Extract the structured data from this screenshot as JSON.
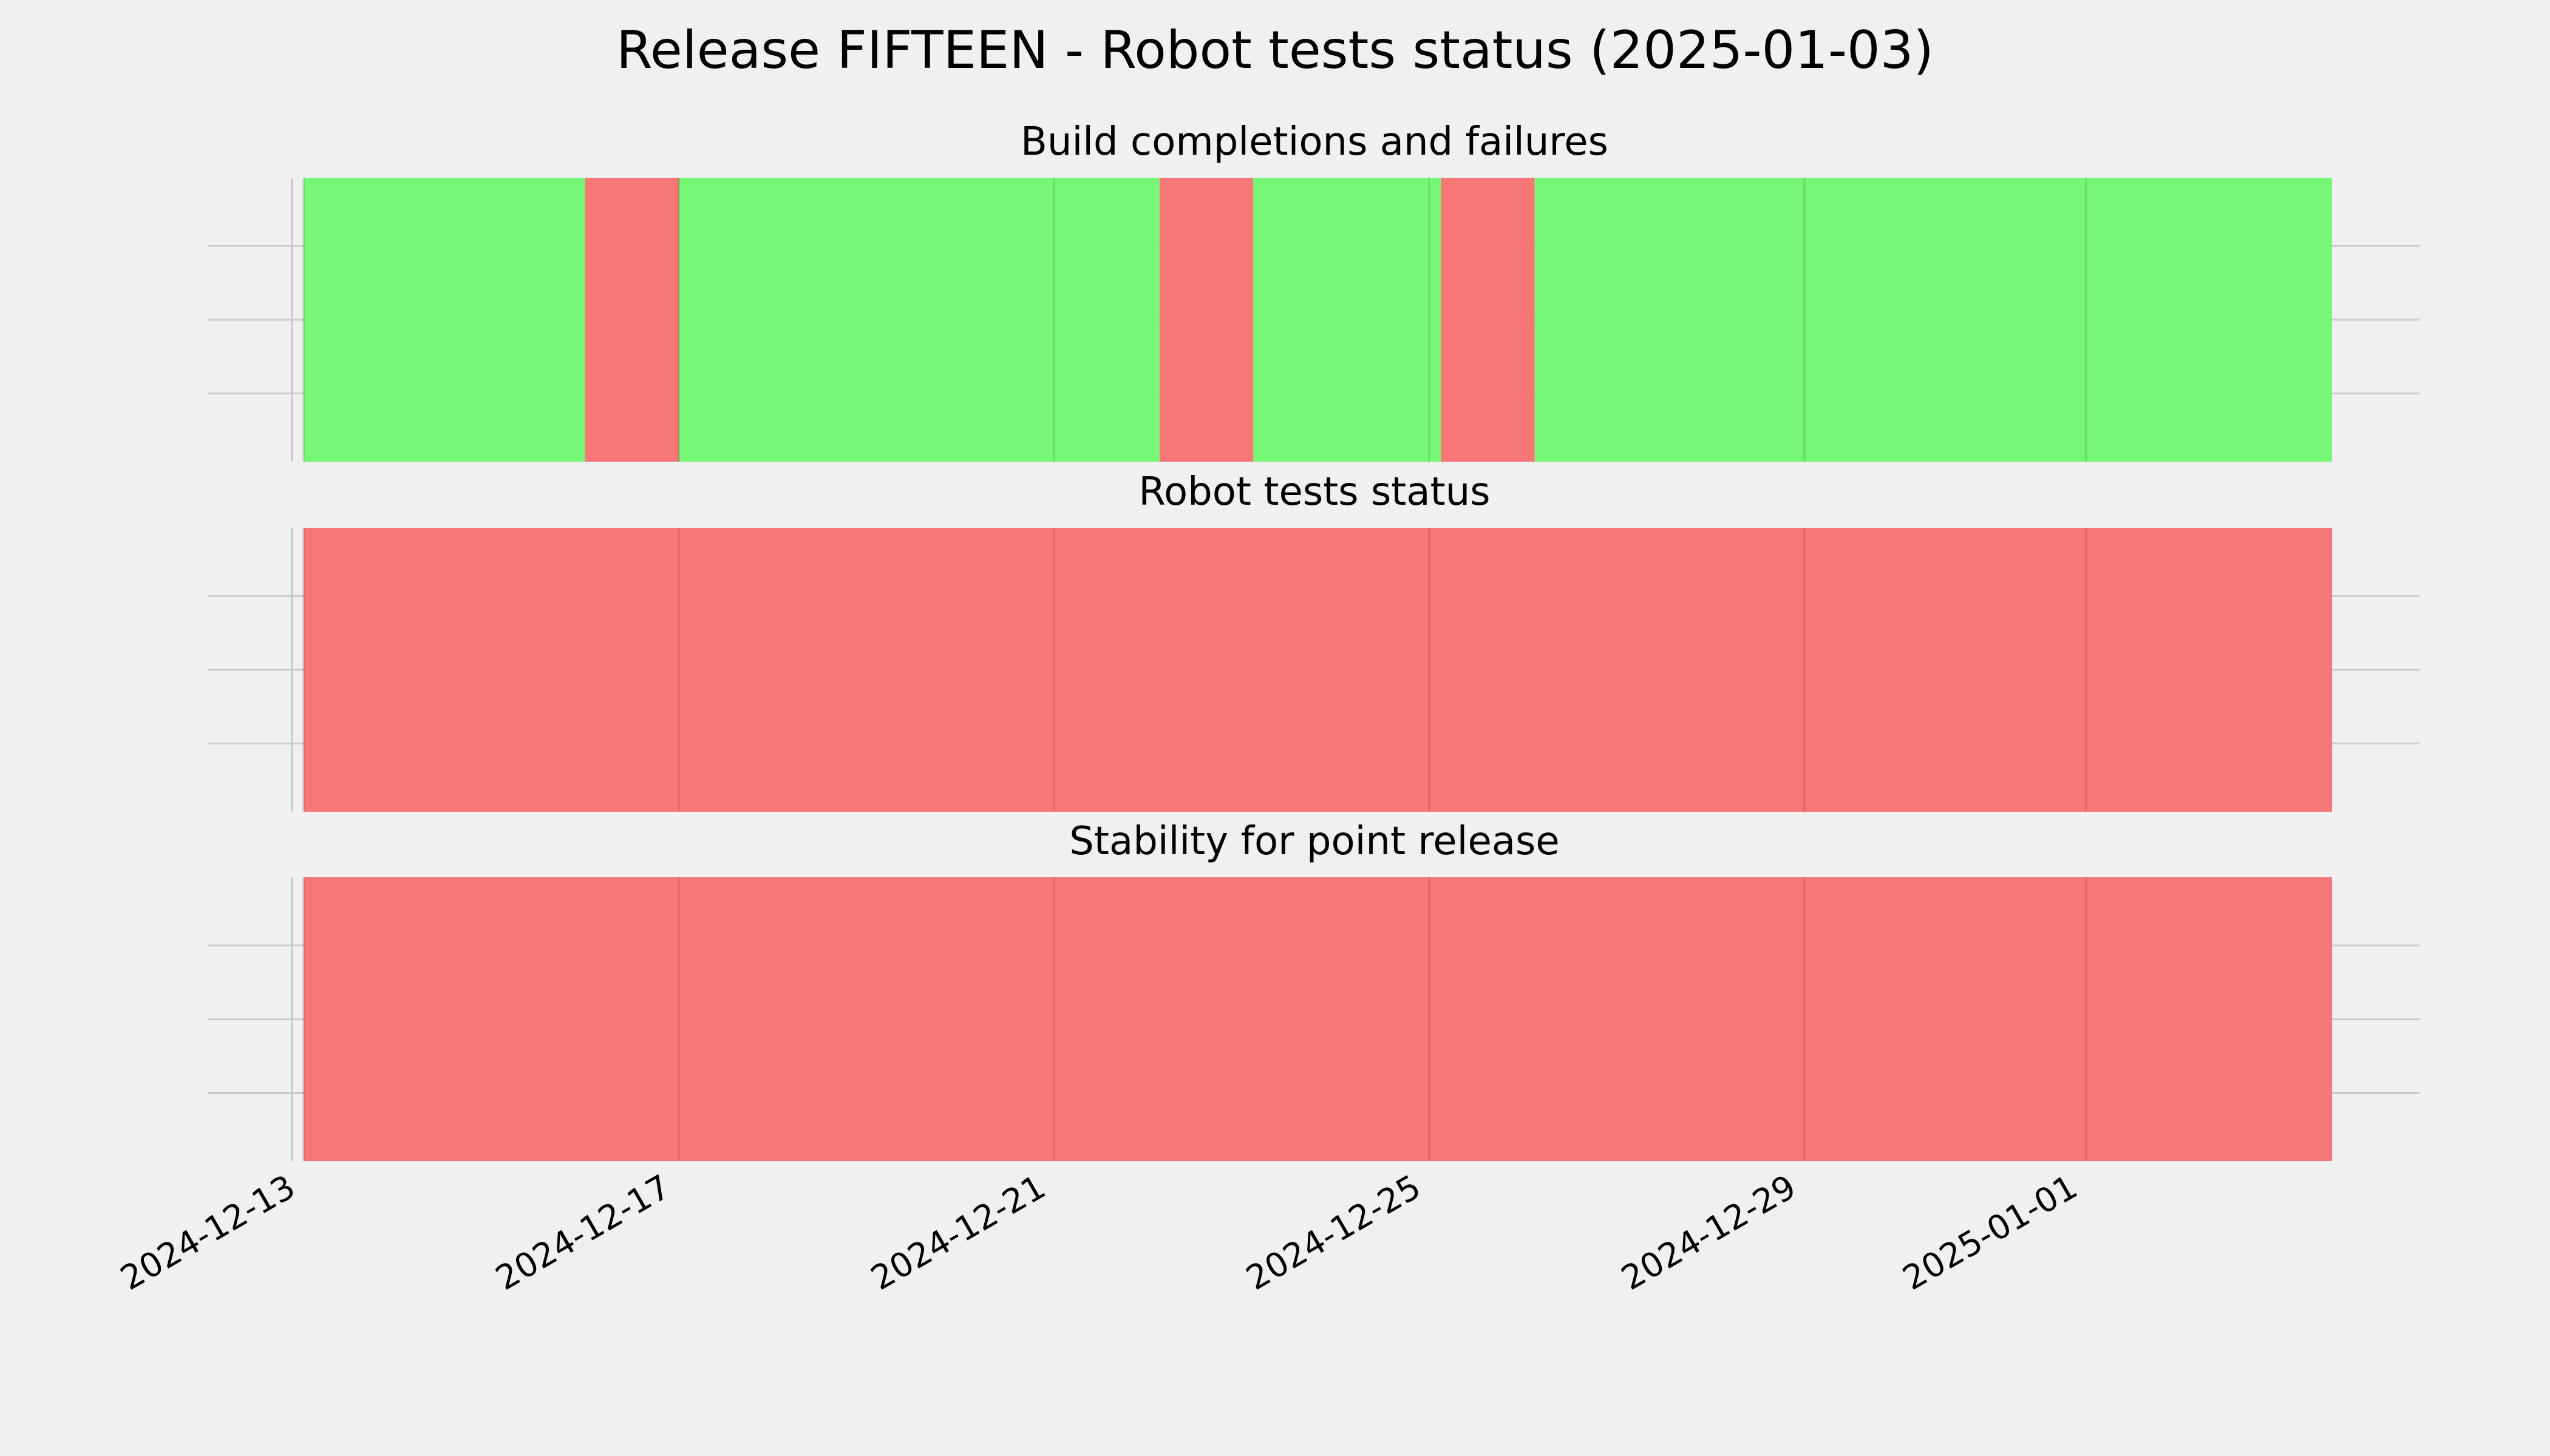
{
  "colors": {
    "pass": "#76f776",
    "fail": "#f77676",
    "background": "#f0f0f0"
  },
  "chart_data": {
    "type": "broken_barh",
    "title": "Release FIFTEEN - Robot tests status (2025-01-03)",
    "xlim": [
      "2024-12-13",
      "2025-01-03"
    ],
    "x_tick_labels": [
      "2024-12-13",
      "2024-12-17",
      "2024-12-21",
      "2024-12-25",
      "2024-12-29",
      "2025-01-01"
    ],
    "grid": true,
    "panels": [
      {
        "title": "Build completions and failures",
        "segments": [
          {
            "start": "2024-12-13T00:00",
            "end": "2024-12-16T00:00",
            "status": "pass"
          },
          {
            "start": "2024-12-16T00:00",
            "end": "2024-12-17T00:00",
            "status": "fail"
          },
          {
            "start": "2024-12-17T00:00",
            "end": "2024-12-22T03:00",
            "status": "pass"
          },
          {
            "start": "2024-12-22T03:00",
            "end": "2024-12-23T03:00",
            "status": "fail"
          },
          {
            "start": "2024-12-23T03:00",
            "end": "2024-12-25T03:00",
            "status": "pass"
          },
          {
            "start": "2024-12-25T03:00",
            "end": "2024-12-26T03:00",
            "status": "fail"
          },
          {
            "start": "2024-12-26T03:00",
            "end": "2025-01-03T15:00",
            "status": "pass"
          }
        ]
      },
      {
        "title": "Robot tests status",
        "segments": [
          {
            "start": "2024-12-13T00:00",
            "end": "2025-01-03T15:00",
            "status": "fail"
          }
        ]
      },
      {
        "title": "Stability for point release",
        "segments": [
          {
            "start": "2024-12-13T00:00",
            "end": "2025-01-03T15:00",
            "status": "fail"
          }
        ]
      }
    ]
  }
}
